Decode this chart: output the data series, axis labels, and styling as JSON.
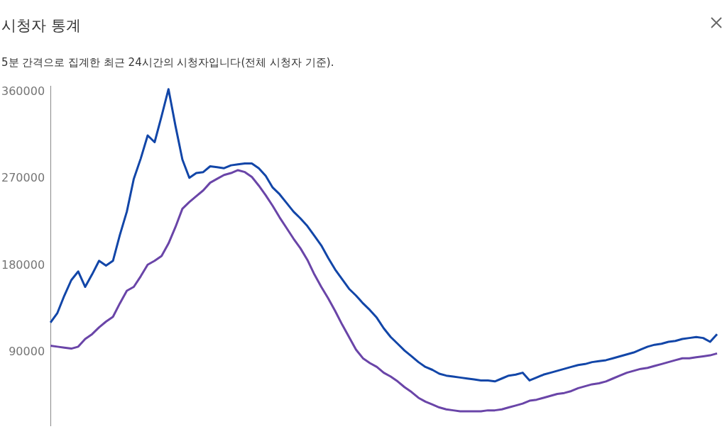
{
  "chart_data": {
    "type": "line",
    "title": "시청자 통계",
    "subtitle": "5분 간격으로 집계한 최근 24시간의 시청자입니다(전체 시청자 기준).",
    "categories": [
      null,
      null,
      null,
      null,
      null,
      null,
      null,
      null,
      null,
      null,
      null,
      null,
      null,
      null,
      null,
      null,
      null,
      null,
      null,
      null,
      null,
      null,
      null,
      null,
      null,
      null,
      null,
      null,
      null,
      null,
      null,
      null,
      null,
      null,
      null,
      null,
      null,
      null,
      null,
      null,
      null,
      null,
      null,
      null,
      null,
      null,
      null,
      null,
      null,
      null,
      null,
      null,
      null,
      null,
      null,
      null,
      null,
      null,
      null,
      null,
      null,
      null,
      null,
      null,
      null,
      null,
      null,
      null,
      null,
      null,
      null,
      null,
      null,
      null,
      null,
      null,
      null,
      null,
      null,
      null,
      null,
      null,
      null,
      null,
      null,
      null,
      null,
      null,
      null,
      null,
      null,
      null,
      null,
      null,
      null,
      null,
      null
    ],
    "ylim": [
      14000,
      366000
    ],
    "yticks": [
      90000,
      180000,
      270000,
      360000
    ],
    "tick_labels": "y",
    "grid": false,
    "legend": false,
    "marker": "none",
    "line_style": "solid",
    "series": [
      {
        "color": "#1246a8",
        "values": [
          121000,
          131000,
          149000,
          165000,
          174000,
          158000,
          171000,
          185000,
          180000,
          185000,
          212000,
          236000,
          270000,
          291000,
          315000,
          308000,
          335000,
          363000,
          325000,
          290000,
          271000,
          276000,
          277000,
          283000,
          282000,
          281000,
          284000,
          285000,
          286000,
          286000,
          281000,
          273000,
          261000,
          254000,
          245000,
          236000,
          229000,
          221000,
          211000,
          201000,
          188000,
          176000,
          166000,
          156000,
          149000,
          141000,
          134000,
          126000,
          115000,
          106000,
          99000,
          92000,
          86000,
          80000,
          75000,
          72000,
          68000,
          66000,
          65000,
          64000,
          63000,
          62000,
          61000,
          61000,
          60000,
          63000,
          66000,
          67000,
          69000,
          61000,
          64000,
          67000,
          69000,
          71000,
          73000,
          75000,
          77000,
          78000,
          80000,
          81000,
          82000,
          84000,
          86000,
          88000,
          90000,
          93000,
          96000,
          98000,
          99000,
          101000,
          102000,
          104000,
          105000,
          106000,
          105000,
          101000,
          109000
        ]
      },
      {
        "color": "#6a45a8",
        "values": [
          97000,
          96000,
          95000,
          94000,
          96000,
          104000,
          109000,
          116000,
          122000,
          127000,
          141000,
          154000,
          158000,
          169000,
          181000,
          185000,
          190000,
          203000,
          220000,
          239000,
          246000,
          252000,
          258000,
          266000,
          270000,
          274000,
          276000,
          279000,
          277000,
          272000,
          263000,
          253000,
          242000,
          230000,
          219000,
          208000,
          198000,
          186000,
          171000,
          158000,
          146000,
          133000,
          119000,
          106000,
          93000,
          84000,
          79000,
          75000,
          69000,
          65000,
          60000,
          54000,
          49000,
          43000,
          39000,
          36000,
          33000,
          31000,
          30000,
          29000,
          29000,
          29000,
          29000,
          30000,
          30000,
          31000,
          33000,
          35000,
          37000,
          40000,
          41000,
          43000,
          45000,
          47000,
          48000,
          50000,
          53000,
          55000,
          57000,
          58000,
          60000,
          63000,
          66000,
          69000,
          71000,
          73000,
          74000,
          76000,
          78000,
          80000,
          82000,
          84000,
          84000,
          85000,
          86000,
          87000,
          89000
        ]
      }
    ]
  }
}
